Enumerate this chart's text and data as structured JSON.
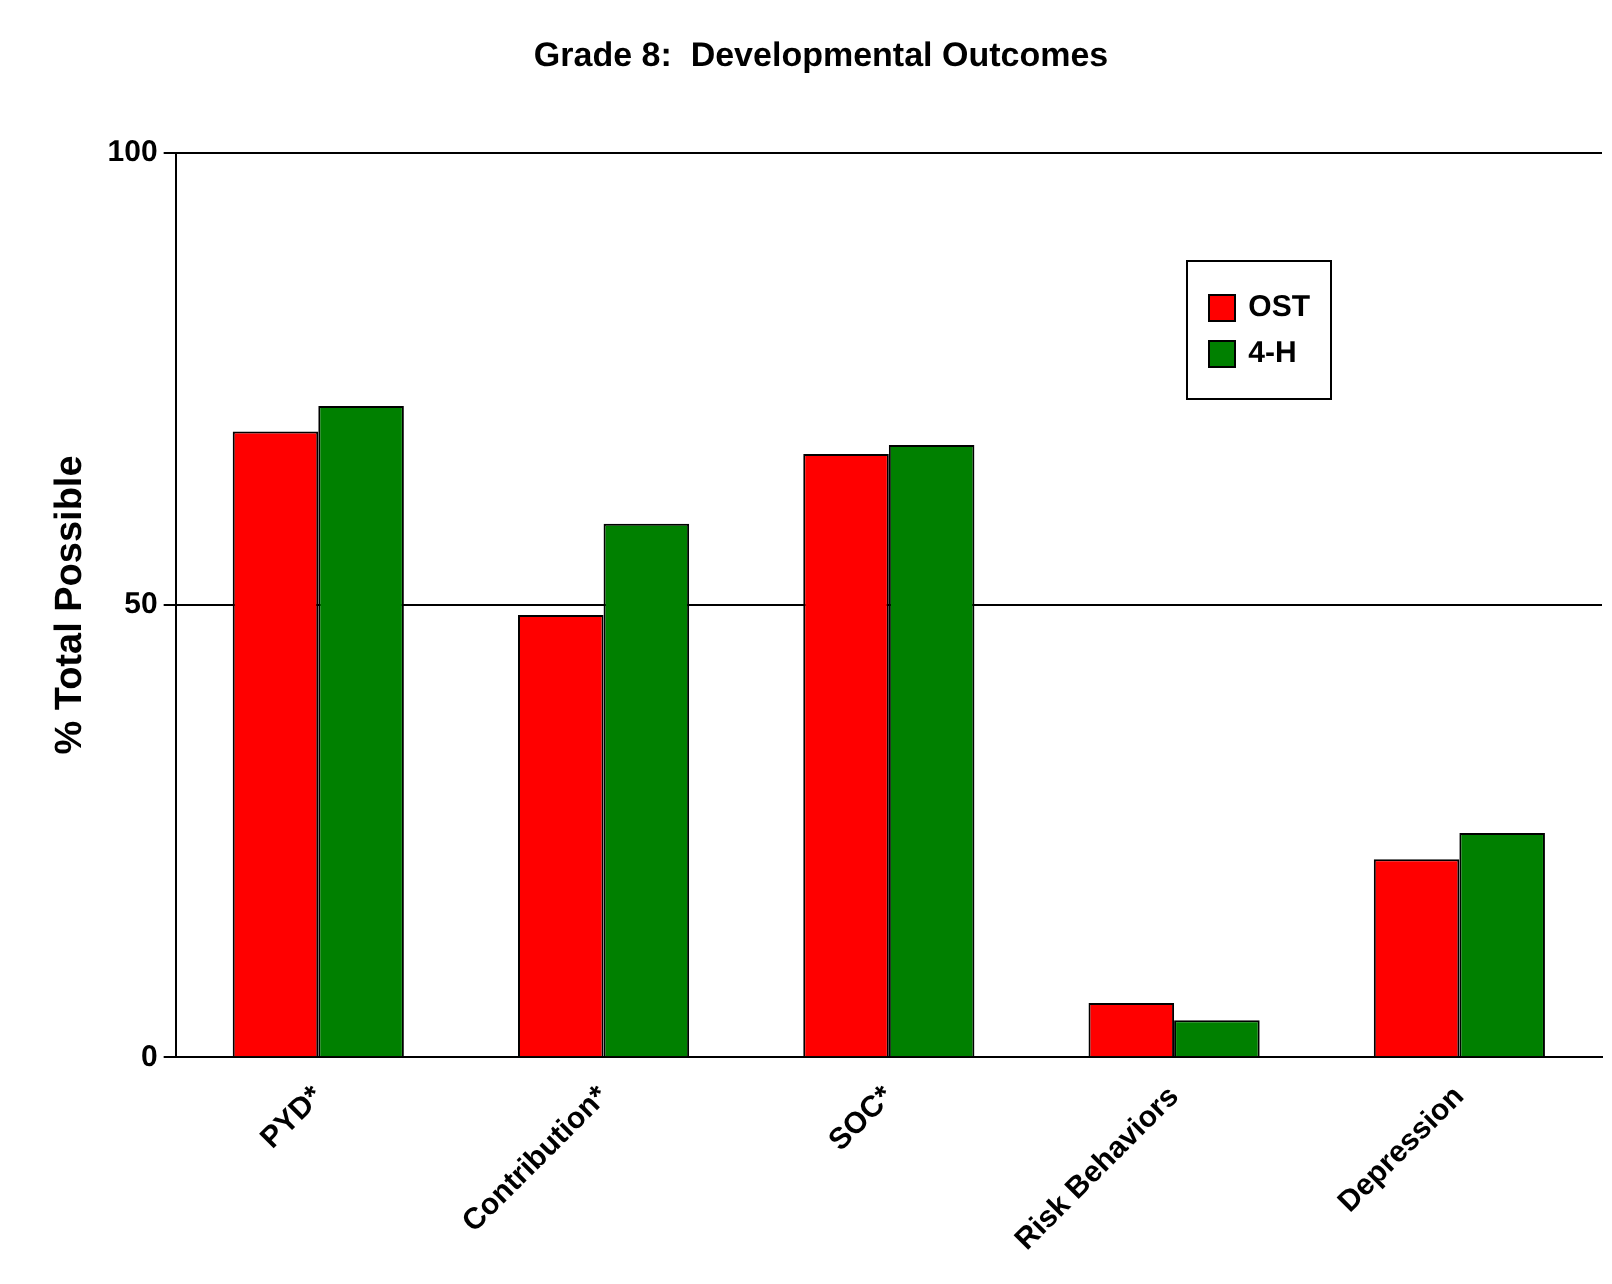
{
  "chart_data": {
    "type": "bar",
    "title": "Grade 8:  Developmental Outcomes",
    "ylabel": "% Total Possible",
    "categories": [
      "PYD*",
      "Contribution*",
      "SOC*",
      "Risk Behaviors",
      "Depression"
    ],
    "series": [
      {
        "name": "OST",
        "color": "#ff0000",
        "values": [
          69.2,
          48.9,
          66.7,
          6.0,
          21.9
        ]
      },
      {
        "name": "4-H",
        "color": "#008000",
        "values": [
          72.0,
          59.0,
          67.7,
          4.1,
          24.8
        ]
      }
    ],
    "ylim": [
      0,
      100
    ],
    "yticks": [
      0,
      50,
      100
    ],
    "grid": "y",
    "legend": "top right"
  }
}
